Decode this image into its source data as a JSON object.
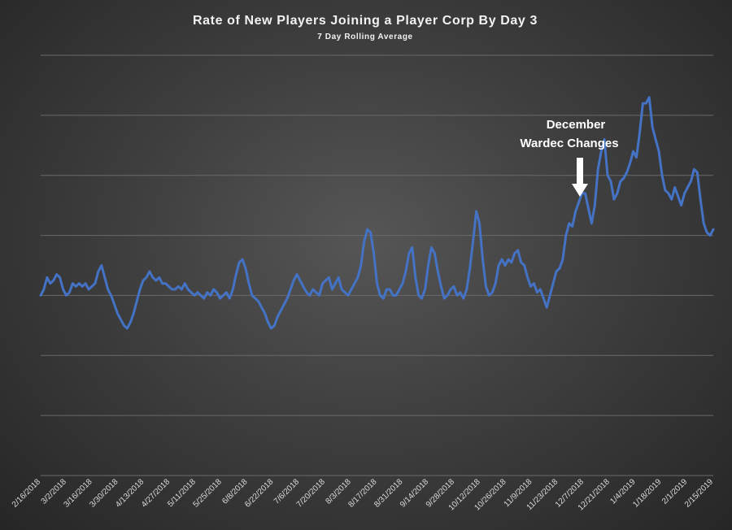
{
  "chart_data": {
    "type": "line",
    "title": "Rate of New Players Joining a Player Corp By Day 3",
    "subtitle": "7 Day Rolling Average",
    "xlabel": "",
    "ylabel": "",
    "grid": true,
    "y_tick_labels_shown": false,
    "line_color": "#4472c4",
    "gridline_color": "#6a6a6a",
    "x_tick_labels": [
      "2/16/2018",
      "3/2/2018",
      "3/16/2018",
      "3/30/2018",
      "4/13/2018",
      "4/27/2018",
      "5/11/2018",
      "5/25/2018",
      "6/8/2018",
      "6/22/2018",
      "7/6/2018",
      "7/20/2018",
      "8/3/2018",
      "8/17/2018",
      "8/31/2018",
      "9/14/2018",
      "9/28/2018",
      "10/12/2018",
      "10/26/2018",
      "11/9/2018",
      "11/23/2018",
      "12/7/2018",
      "12/21/2018",
      "1/4/2019",
      "1/18/2019",
      "2/1/2019",
      "2/15/2019"
    ],
    "x_start": "2/16/2018",
    "ylim": [
      0,
      7
    ],
    "annotation": {
      "line1": "December",
      "line2": "Wardec Changes",
      "arrow": "down-arrow",
      "date": "12/6/2018"
    },
    "series": [
      {
        "values": [
          3.0,
          3.1,
          3.3,
          3.2,
          3.25,
          3.35,
          3.3,
          3.1,
          3.0,
          3.05,
          3.2,
          3.15,
          3.2,
          3.15,
          3.2,
          3.1,
          3.15,
          3.2,
          3.4,
          3.5,
          3.3,
          3.1,
          3.0,
          2.85,
          2.7,
          2.6,
          2.5,
          2.45,
          2.55,
          2.7,
          2.9,
          3.1,
          3.25,
          3.3,
          3.4,
          3.3,
          3.25,
          3.3,
          3.2,
          3.2,
          3.15,
          3.1,
          3.1,
          3.15,
          3.1,
          3.2,
          3.1,
          3.05,
          3.0,
          3.05,
          3.0,
          2.95,
          3.05,
          3.0,
          3.1,
          3.05,
          2.95,
          3.0,
          3.05,
          2.95,
          3.1,
          3.35,
          3.55,
          3.6,
          3.45,
          3.2,
          3.0,
          2.95,
          2.9,
          2.8,
          2.7,
          2.55,
          2.45,
          2.5,
          2.65,
          2.75,
          2.85,
          2.95,
          3.1,
          3.25,
          3.35,
          3.25,
          3.15,
          3.05,
          3.0,
          3.1,
          3.05,
          3.0,
          3.2,
          3.25,
          3.3,
          3.1,
          3.2,
          3.3,
          3.1,
          3.05,
          3.0,
          3.1,
          3.2,
          3.3,
          3.5,
          3.9,
          4.1,
          4.05,
          3.7,
          3.2,
          3.0,
          2.95,
          3.1,
          3.1,
          3.0,
          3.0,
          3.1,
          3.2,
          3.4,
          3.7,
          3.8,
          3.3,
          3.0,
          2.95,
          3.1,
          3.5,
          3.8,
          3.7,
          3.4,
          3.15,
          2.95,
          3.0,
          3.1,
          3.15,
          3.0,
          3.05,
          2.95,
          3.1,
          3.45,
          3.9,
          4.4,
          4.2,
          3.6,
          3.15,
          3.0,
          3.05,
          3.2,
          3.5,
          3.6,
          3.5,
          3.6,
          3.55,
          3.7,
          3.75,
          3.55,
          3.5,
          3.3,
          3.15,
          3.2,
          3.05,
          3.1,
          2.95,
          2.8,
          3.0,
          3.2,
          3.4,
          3.45,
          3.6,
          4.0,
          4.2,
          4.15,
          4.4,
          4.55,
          4.7,
          4.7,
          4.45,
          4.2,
          4.5,
          5.1,
          5.4,
          5.6,
          5.0,
          4.9,
          4.6,
          4.7,
          4.9,
          4.95,
          5.05,
          5.2,
          5.4,
          5.3,
          5.7,
          6.2,
          6.2,
          6.3,
          5.8,
          5.6,
          5.4,
          5.0,
          4.75,
          4.7,
          4.6,
          4.8,
          4.65,
          4.5,
          4.7,
          4.8,
          4.9,
          5.1,
          5.05,
          4.6,
          4.2,
          4.05,
          4.0,
          4.1
        ]
      }
    ]
  }
}
